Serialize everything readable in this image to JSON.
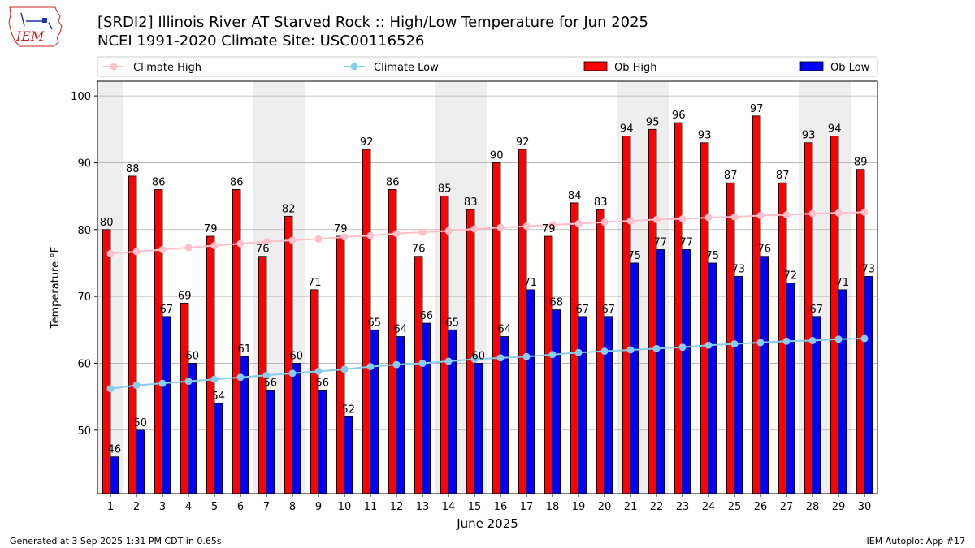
{
  "header": {
    "title_line1": "[SRDI2] Illinois River  AT Starved Rock :: High/Low Temperature for Jun 2025",
    "title_line2": "NCEI 1991-2020 Climate Site: USC00116526",
    "logo_text": "IEM"
  },
  "footer": {
    "generated": "Generated at 3 Sep 2025 1:31 PM CDT in 0.65s",
    "app": "IEM Autoplot App #17"
  },
  "colors": {
    "ob_high": "#ff0000",
    "ob_low": "#0000ff",
    "climate_high": "#ffc0cb",
    "climate_low": "#87ceeb",
    "weekend_shade": "#eeeeee",
    "grid": "#b0b0b0"
  },
  "chart_data": {
    "type": "bar",
    "xlabel": "June 2025",
    "ylabel": "Temperature °F",
    "ylim": [
      40.5,
      102.2
    ],
    "yticks": [
      50,
      60,
      70,
      80,
      90,
      100
    ],
    "grid": "horizontal",
    "legend_position": "top",
    "shaded_days": [
      1,
      7,
      8,
      14,
      15,
      21,
      22,
      28,
      29
    ],
    "categories": [
      "1",
      "2",
      "3",
      "4",
      "5",
      "6",
      "7",
      "8",
      "9",
      "10",
      "11",
      "12",
      "13",
      "14",
      "15",
      "16",
      "17",
      "18",
      "19",
      "20",
      "21",
      "22",
      "23",
      "24",
      "25",
      "26",
      "27",
      "28",
      "29",
      "30"
    ],
    "series": [
      {
        "name": "Ob High",
        "kind": "bar",
        "color": "#ff0000",
        "values": [
          80,
          88,
          86,
          69,
          79,
          86,
          76,
          82,
          71,
          79,
          92,
          86,
          76,
          85,
          83,
          90,
          92,
          79,
          84,
          83,
          94,
          95,
          96,
          93,
          87,
          97,
          87,
          93,
          94,
          89
        ]
      },
      {
        "name": "Ob Low",
        "kind": "bar",
        "color": "#0000ff",
        "values": [
          46,
          50,
          67,
          60,
          54,
          61,
          56,
          60,
          56,
          52,
          65,
          64,
          66,
          65,
          60,
          64,
          71,
          68,
          67,
          67,
          75,
          77,
          77,
          75,
          73,
          76,
          72,
          67,
          71,
          73
        ]
      },
      {
        "name": "Climate High",
        "kind": "line",
        "color": "#ffc0cb",
        "values": [
          76.4,
          76.7,
          77.0,
          77.3,
          77.6,
          77.9,
          78.2,
          78.4,
          78.6,
          78.9,
          79.1,
          79.4,
          79.6,
          79.8,
          80.1,
          80.3,
          80.5,
          80.7,
          80.9,
          81.1,
          81.3,
          81.5,
          81.6,
          81.8,
          81.9,
          82.1,
          82.2,
          82.4,
          82.5,
          82.6
        ]
      },
      {
        "name": "Climate Low",
        "kind": "line",
        "color": "#87ceeb",
        "values": [
          56.2,
          56.7,
          57.0,
          57.3,
          57.6,
          57.9,
          58.2,
          58.5,
          58.8,
          59.1,
          59.5,
          59.8,
          60.0,
          60.3,
          60.6,
          60.8,
          61.0,
          61.3,
          61.6,
          61.8,
          62.0,
          62.2,
          62.4,
          62.7,
          62.9,
          63.1,
          63.3,
          63.4,
          63.6,
          63.7
        ]
      }
    ]
  }
}
